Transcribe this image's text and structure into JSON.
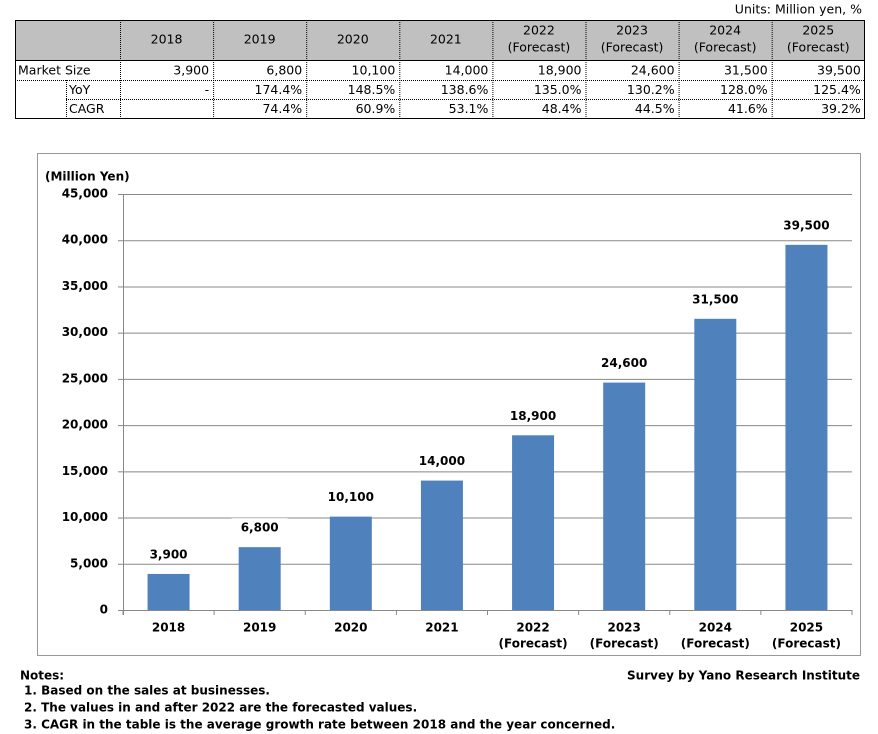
{
  "units": "Units: Million yen, %",
  "table": {
    "columns": [
      "2018",
      "2019",
      "2020",
      "2021",
      "2022",
      "2023",
      "2024",
      "2025"
    ],
    "column_notes": [
      null,
      null,
      null,
      null,
      "(Forecast)",
      "(Forecast)",
      "(Forecast)",
      "(Forecast)"
    ],
    "rows": [
      {
        "label": "Market Size",
        "cells": [
          "3,900",
          "6,800",
          "10,100",
          "14,000",
          "18,900",
          "24,600",
          "31,500",
          "39,500"
        ]
      },
      {
        "label": "YoY",
        "cells": [
          "-",
          "174.4%",
          "148.5%",
          "138.6%",
          "135.0%",
          "130.2%",
          "128.0%",
          "125.4%"
        ]
      },
      {
        "label": "CAGR",
        "cells": [
          null,
          "74.4%",
          "60.9%",
          "53.1%",
          "48.4%",
          "44.5%",
          "41.6%",
          "39.2%"
        ]
      }
    ]
  },
  "chart_data": {
    "type": "bar",
    "y_label": "(Million Yen)",
    "categories": [
      "2018",
      "2019",
      "2020",
      "2021",
      "2022",
      "2023",
      "2024",
      "2025"
    ],
    "category_notes": [
      null,
      null,
      null,
      null,
      "(Forecast)",
      "(Forecast)",
      "(Forecast)",
      "(Forecast)"
    ],
    "values": [
      3900,
      6800,
      10100,
      14000,
      18900,
      24600,
      31500,
      39500
    ],
    "value_labels": [
      "3,900",
      "6,800",
      "10,100",
      "14,000",
      "18,900",
      "24,600",
      "31,500",
      "39,500"
    ],
    "color": "#4f81bd",
    "ylim": [
      0,
      45000
    ],
    "yticks": [
      0,
      {
        "value": 5000,
        "label": "5,000"
      },
      {
        "value": 10000,
        "label": "10,000"
      },
      {
        "value": 15000,
        "label": "15,000"
      },
      {
        "value": 20000,
        "label": "20,000"
      },
      {
        "value": 25000,
        "label": "25,000"
      },
      {
        "value": 30000,
        "label": "30,000"
      },
      {
        "value": 35000,
        "label": "35,000"
      },
      {
        "value": 40000,
        "label": "40,000"
      },
      {
        "value": 45000,
        "label": "45,000"
      }
    ],
    "grid": true
  },
  "notes": {
    "title": "Notes:",
    "items": [
      "1. Based on the sales at businesses.",
      "2. The values in and after 2022 are the forecasted values.",
      "3. CAGR in the table is the average growth rate between 2018 and the year concerned."
    ]
  },
  "source": "Survey by Yano Research Institute"
}
